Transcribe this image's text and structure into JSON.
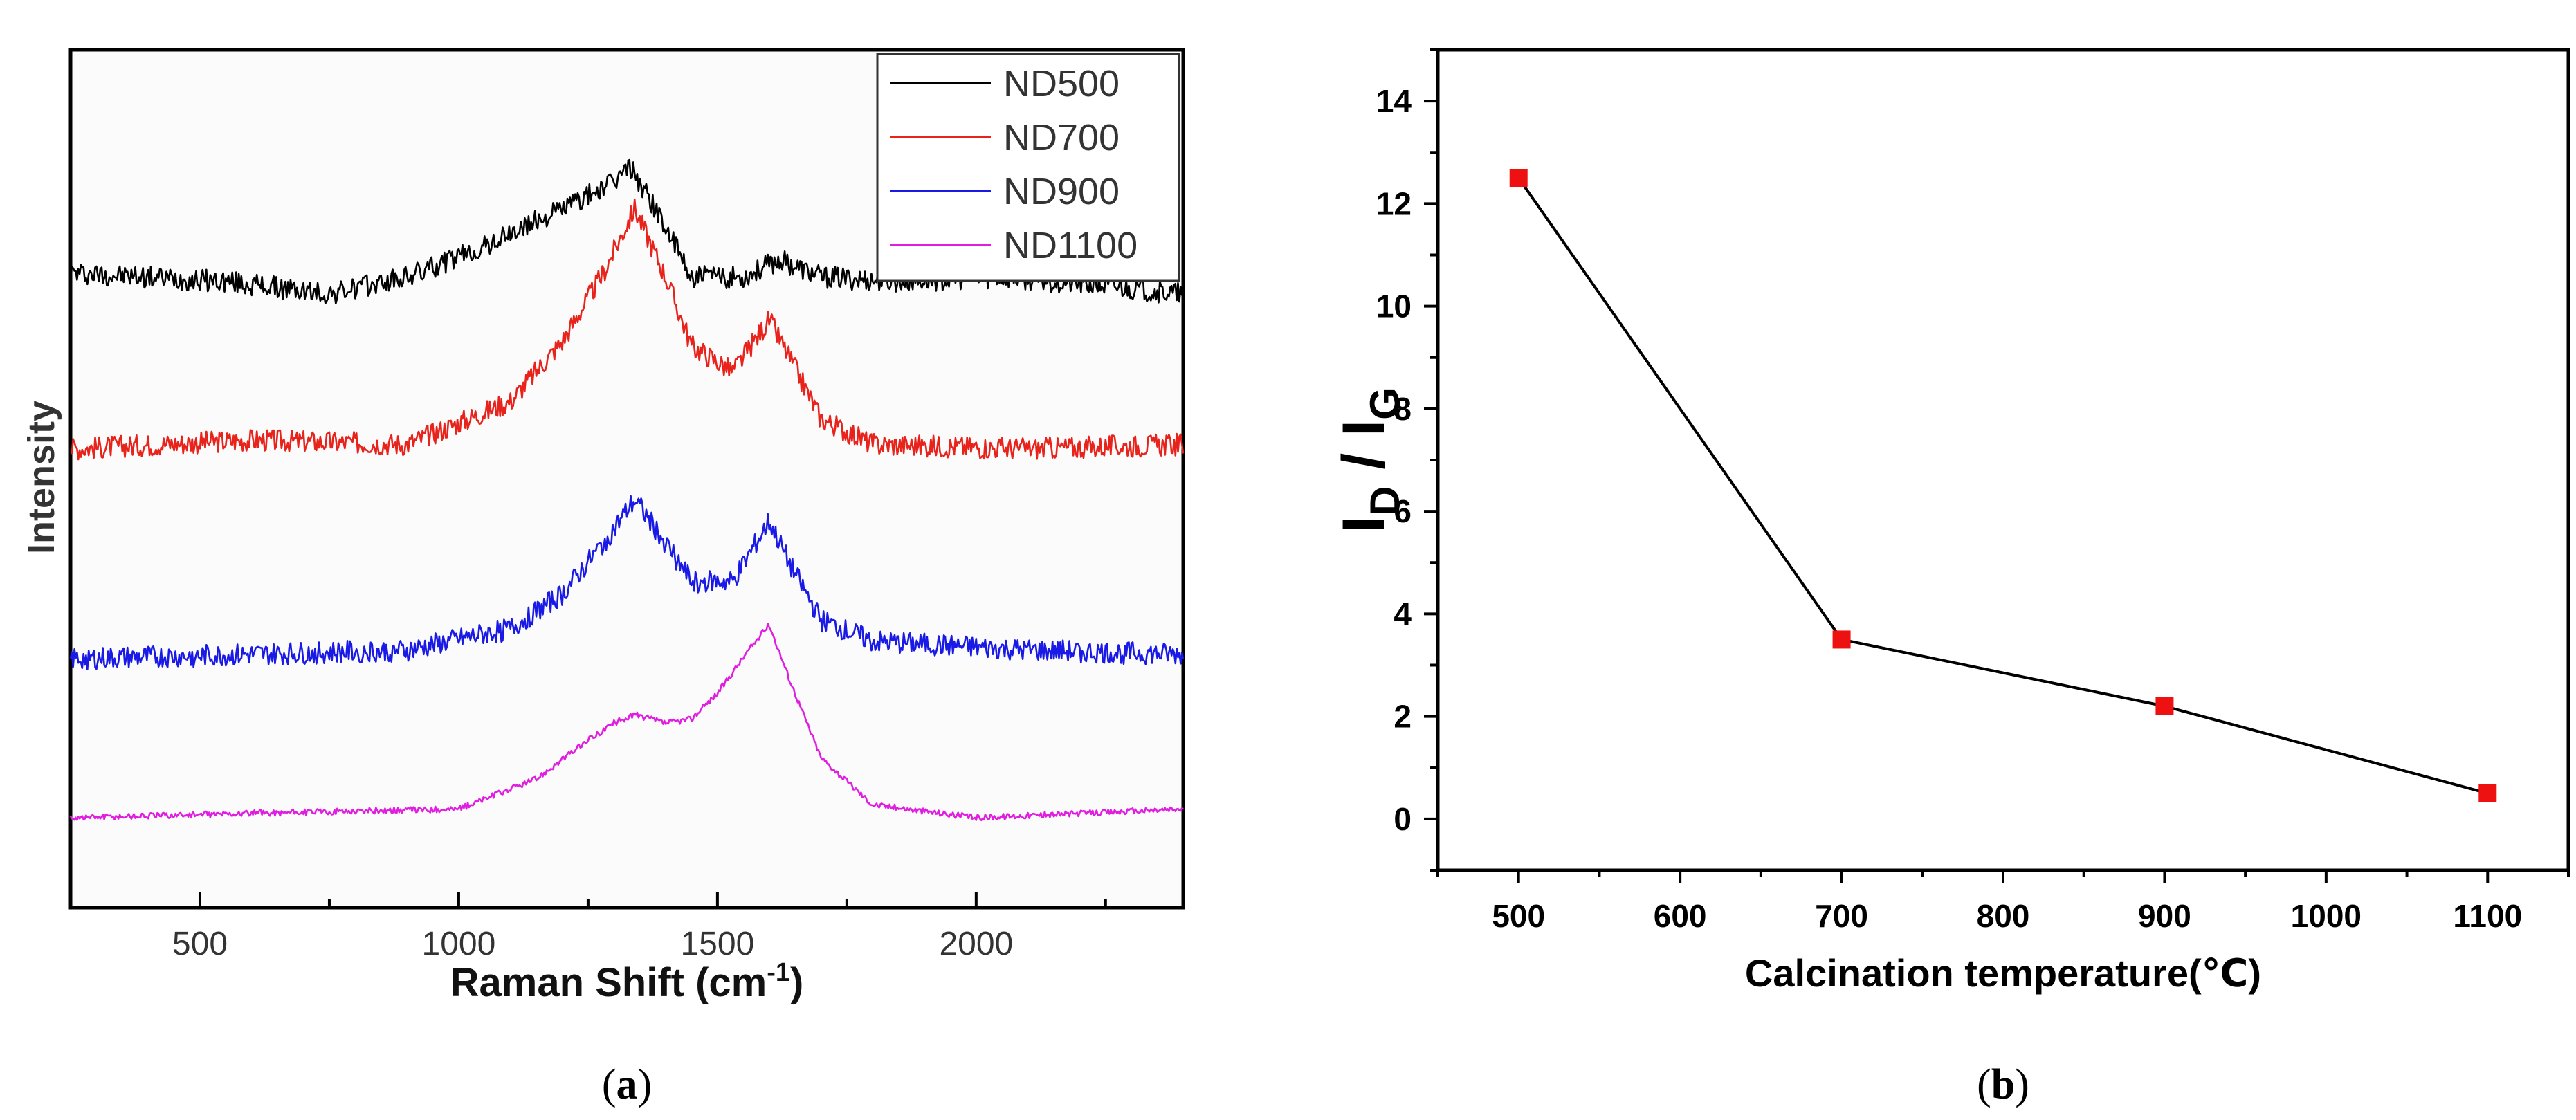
{
  "figure": {
    "panel_a_caption": {
      "open": "(",
      "letter": "a",
      "close": ")"
    },
    "panel_b_caption": {
      "open": "(",
      "letter": "b",
      "close": ")"
    }
  },
  "chart_data": [
    {
      "id": "a",
      "type": "line",
      "title": "",
      "xlabel": {
        "main": "Raman  Shift (cm",
        "sup": "-1",
        "close": ")"
      },
      "ylabel": "Intensity",
      "xlim": [
        250,
        2400
      ],
      "xticks": [
        500,
        1000,
        1500,
        2000
      ],
      "yticks_shown": false,
      "legend_position": "top-right",
      "colors": {
        "ND500": "#000000",
        "ND700": "#e8231c",
        "ND900": "#1a1ae6",
        "ND1100": "#e01ee0"
      },
      "series": [
        {
          "name": "ND500",
          "x": [
            250,
            400,
            550,
            750,
            900,
            1050,
            1200,
            1300,
            1330,
            1380,
            1450,
            1550,
            1620,
            1700,
            1850,
            2050,
            2250,
            2400
          ],
          "y": [
            0.48,
            0.47,
            0.46,
            0.43,
            0.47,
            0.54,
            0.63,
            0.69,
            0.73,
            0.63,
            0.47,
            0.47,
            0.51,
            0.47,
            0.46,
            0.47,
            0.45,
            0.43
          ]
        },
        {
          "name": "ND700",
          "x": [
            250,
            600,
            900,
            1100,
            1200,
            1280,
            1340,
            1400,
            1450,
            1530,
            1600,
            1640,
            1700,
            1800,
            2100,
            2400
          ],
          "y": [
            0.07,
            0.09,
            0.08,
            0.18,
            0.32,
            0.48,
            0.63,
            0.47,
            0.31,
            0.25,
            0.37,
            0.28,
            0.14,
            0.08,
            0.07,
            0.08
          ]
        },
        {
          "name": "ND900",
          "x": [
            250,
            600,
            900,
            1100,
            1200,
            1280,
            1340,
            1400,
            1450,
            1530,
            1600,
            1640,
            1700,
            1800,
            2100,
            2400
          ],
          "y": [
            -0.42,
            -0.41,
            -0.4,
            -0.35,
            -0.27,
            -0.15,
            -0.05,
            -0.15,
            -0.24,
            -0.24,
            -0.1,
            -0.2,
            -0.33,
            -0.38,
            -0.4,
            -0.41
          ]
        },
        {
          "name": "ND1100",
          "x": [
            250,
            600,
            1000,
            1150,
            1250,
            1300,
            1340,
            1400,
            1450,
            1500,
            1560,
            1600,
            1640,
            1700,
            1800,
            2000,
            2400
          ],
          "y": [
            -0.79,
            -0.78,
            -0.77,
            -0.7,
            -0.61,
            -0.57,
            -0.55,
            -0.57,
            -0.56,
            -0.5,
            -0.4,
            -0.34,
            -0.47,
            -0.65,
            -0.76,
            -0.79,
            -0.77
          ]
        }
      ]
    },
    {
      "id": "b",
      "type": "line",
      "title": "",
      "xlabel": "Calcination temperature(℃)",
      "ylabel": {
        "main": "I",
        "sub1": "D",
        "mid": " / I",
        "sub2": "G"
      },
      "xlim": [
        450,
        1150
      ],
      "ylim": [
        -1,
        15
      ],
      "xticks": [
        500,
        600,
        700,
        800,
        900,
        1000,
        1100
      ],
      "yticks": [
        0,
        2,
        4,
        6,
        8,
        10,
        12,
        14
      ],
      "marker_color": "#ee1111",
      "line_color": "#000000",
      "series": [
        {
          "name": "ID/IG",
          "x": [
            500,
            700,
            900,
            1100
          ],
          "y": [
            12.5,
            3.5,
            2.2,
            0.5
          ]
        }
      ]
    }
  ]
}
